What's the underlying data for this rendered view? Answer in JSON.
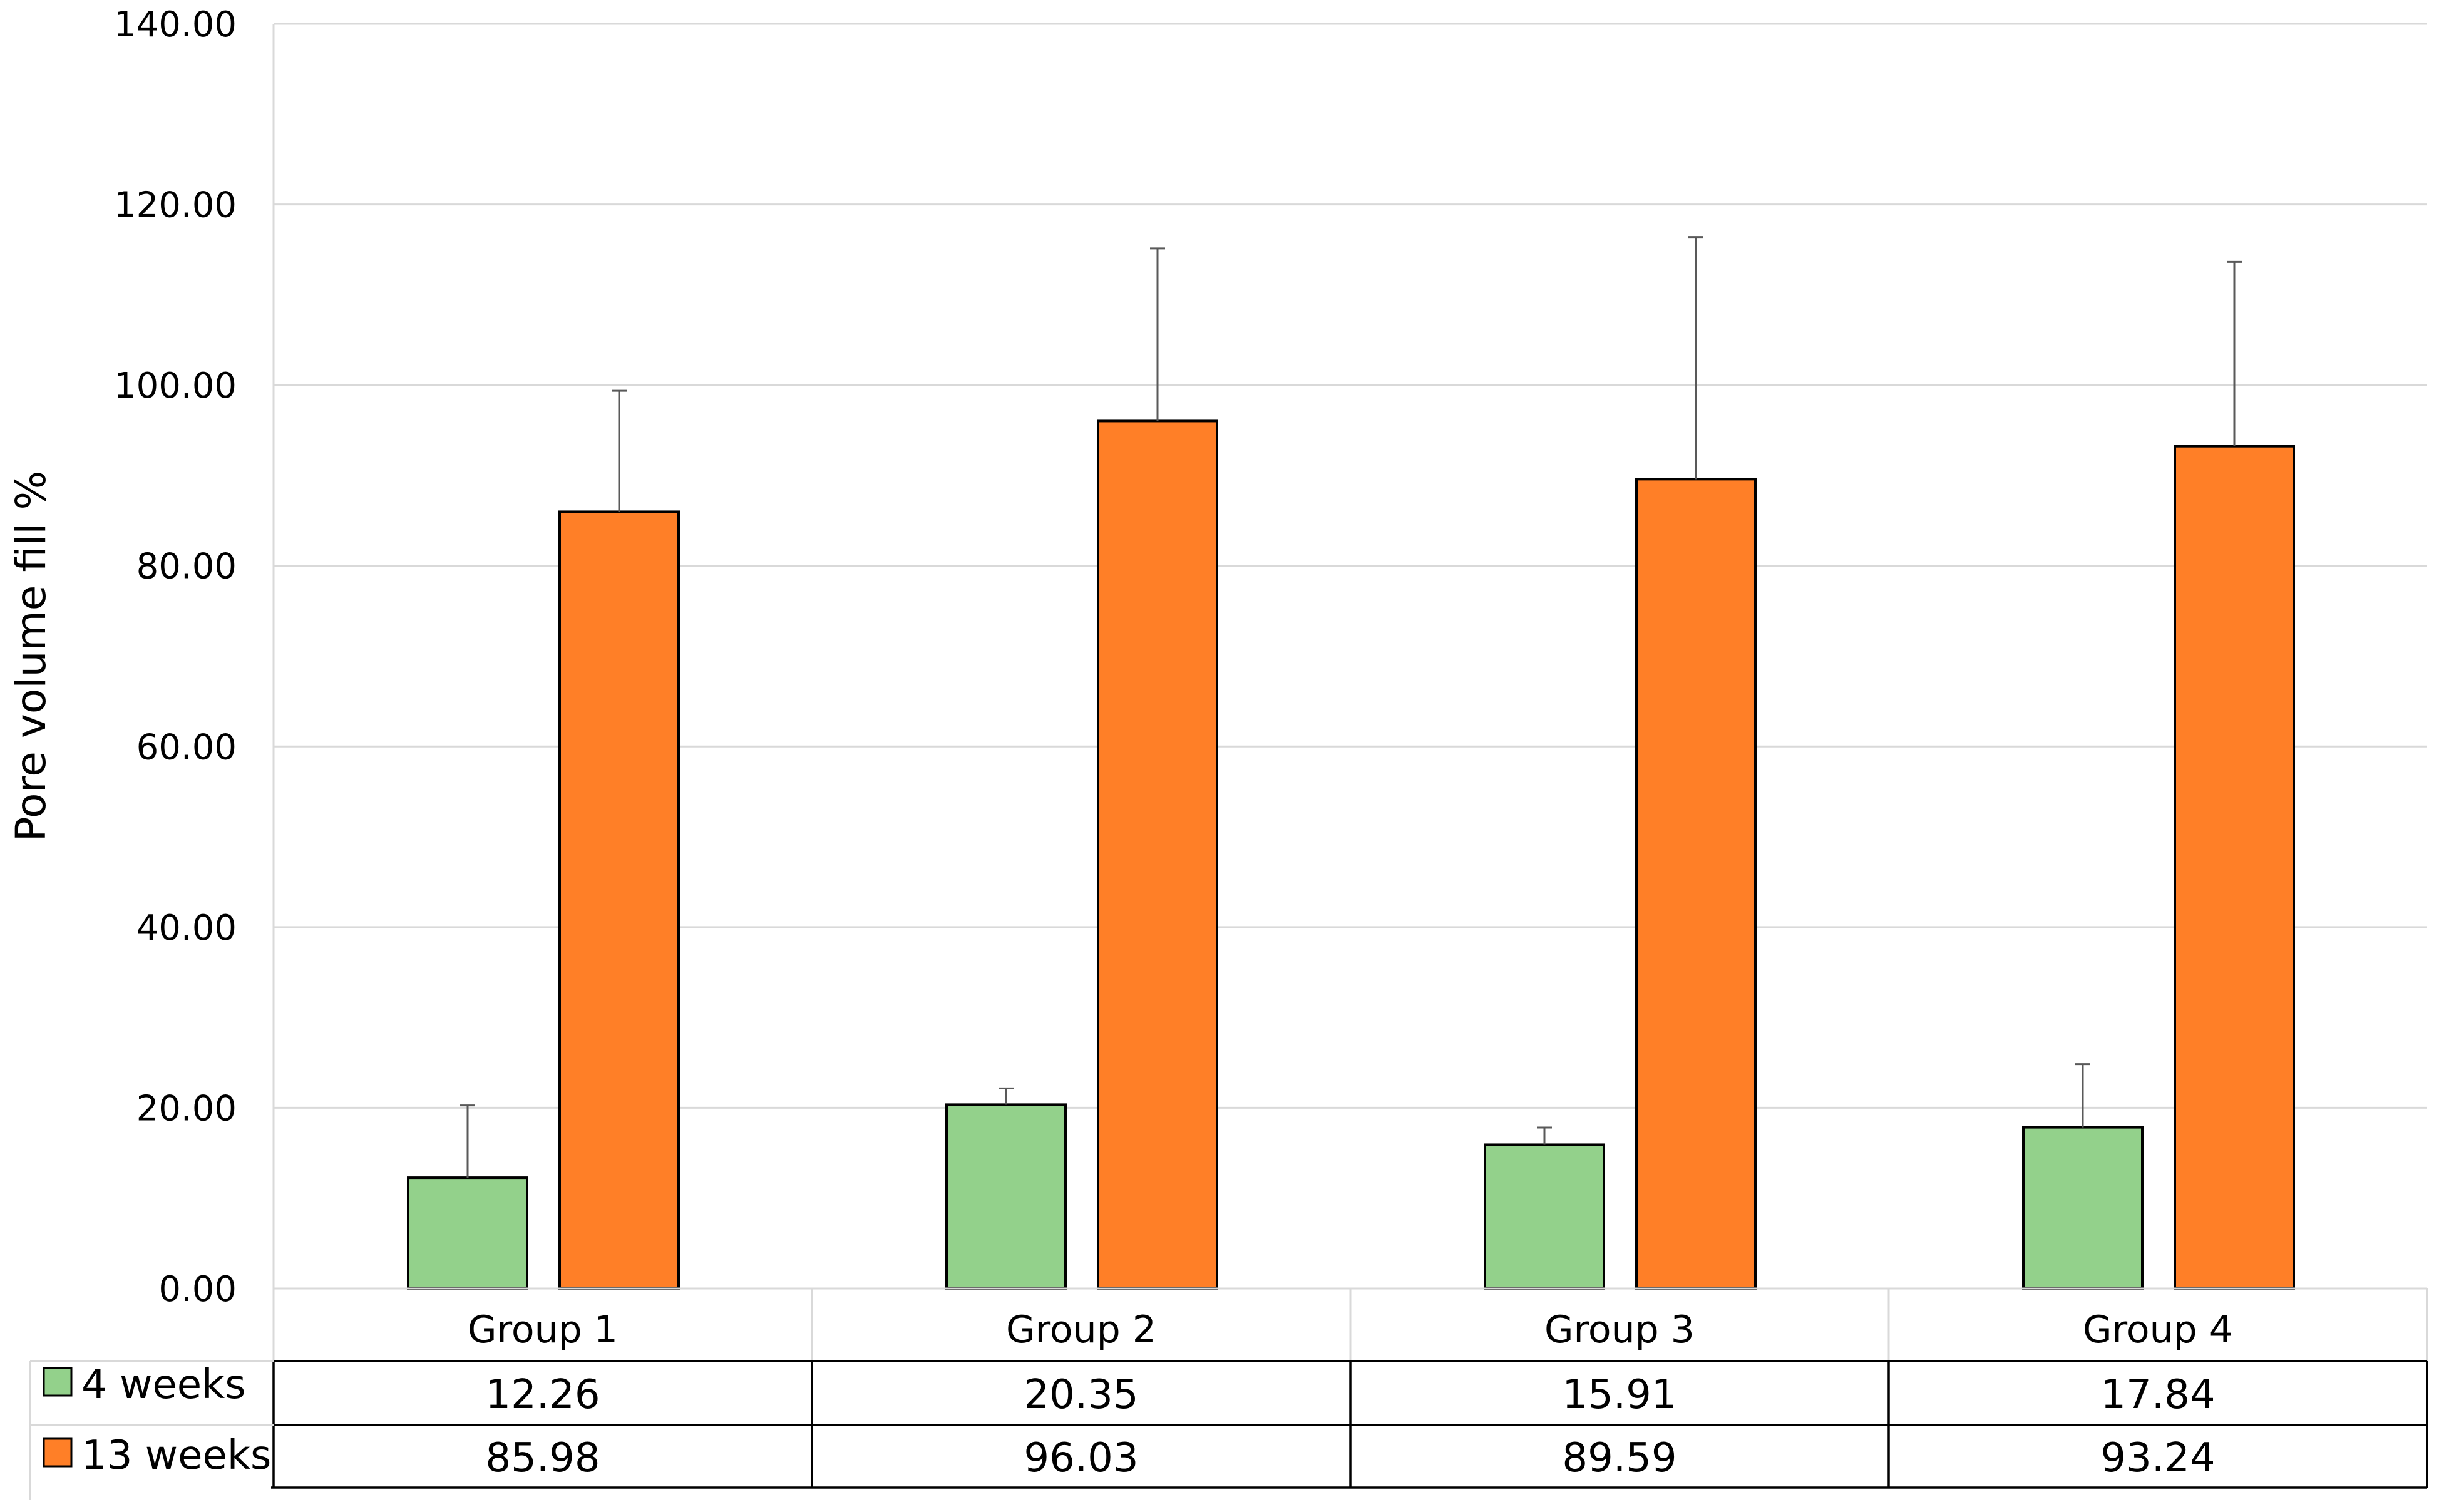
{
  "chart_data": {
    "type": "bar",
    "title": "",
    "xlabel": "",
    "ylabel": "Pore volume fill %",
    "ylim": [
      0,
      140
    ],
    "yticks": [
      "0.00",
      "20.00",
      "40.00",
      "60.00",
      "80.00",
      "100.00",
      "120.00",
      "140.00"
    ],
    "grid": true,
    "legend": "data-table-left",
    "categories": [
      "Group 1",
      "Group 2",
      "Group 3",
      "Group 4"
    ],
    "series": [
      {
        "name": "4 weeks",
        "color": "#93d18b",
        "values": [
          12.26,
          20.35,
          15.91,
          17.84
        ],
        "labels": [
          "12.26",
          "20.35",
          "15.91",
          "17.84"
        ],
        "error_upper": [
          8.0,
          1.8,
          1.9,
          7.0
        ]
      },
      {
        "name": "13 weeks",
        "color": "#ff7f27",
        "values": [
          85.98,
          96.03,
          89.59,
          93.24
        ],
        "labels": [
          "85.98",
          "96.03",
          "89.59",
          "93.24"
        ],
        "error_upper": [
          13.4,
          19.1,
          26.8,
          20.4
        ]
      }
    ]
  }
}
